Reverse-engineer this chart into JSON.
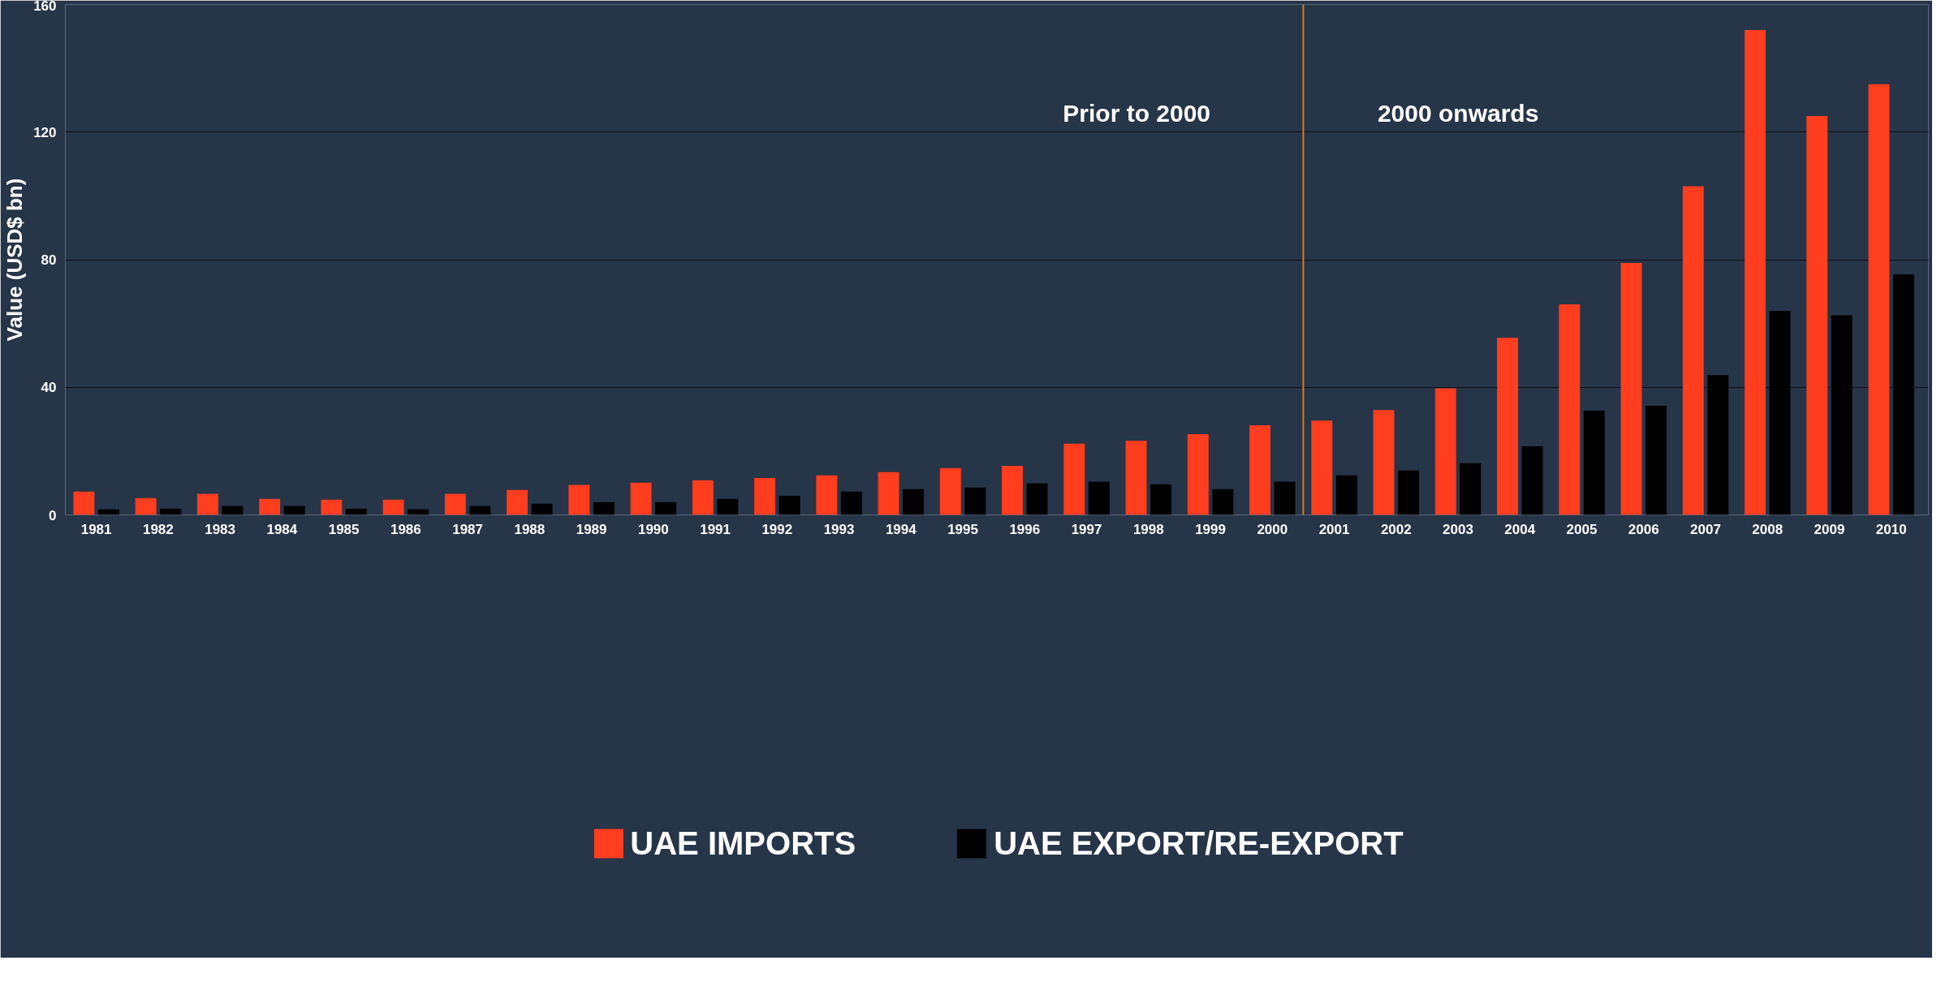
{
  "chart_data": {
    "type": "bar",
    "ylabel": "Value (USD$ bn)",
    "x": [
      1981,
      1982,
      1983,
      1984,
      1985,
      1986,
      1987,
      1988,
      1989,
      1990,
      1991,
      1992,
      1993,
      1994,
      1995,
      1996,
      1997,
      1998,
      1999,
      2000,
      2001,
      2002,
      2003,
      2004,
      2005,
      2006,
      2007,
      2008,
      2009,
      2010
    ],
    "xlim": [
      1980.5,
      2010.6
    ],
    "xticks": [
      1981,
      1982,
      1983,
      1984,
      1985,
      1986,
      1987,
      1988,
      1989,
      1990,
      1991,
      1992,
      1993,
      1994,
      1995,
      1996,
      1997,
      1998,
      1999,
      2000,
      2001,
      2002,
      2003,
      2004,
      2005,
      2006,
      2007,
      2008,
      2009,
      2010
    ],
    "ylim": [
      0,
      160
    ],
    "yticks": [
      0,
      40,
      80,
      120,
      160
    ],
    "grid": "y",
    "legend": "bottom",
    "series": [
      {
        "name": "UAE IMPORTS",
        "color": "#ff3d1f",
        "values": [
          7.3,
          5.3,
          6.6,
          5,
          4.8,
          4.8,
          6.6,
          7.8,
          9.4,
          10.1,
          10.9,
          11.6,
          12.4,
          13.4,
          14.7,
          15.4,
          22.3,
          23.3,
          25.3,
          28.1,
          29.6,
          32.9,
          39.7,
          55.5,
          66,
          79,
          103,
          152,
          125,
          135
        ]
      },
      {
        "name": "UAE EXPORT/RE-EXPORT",
        "color": "#000000",
        "values": [
          1.8,
          2,
          2.8,
          2.8,
          2,
          1.8,
          2.8,
          3.5,
          4,
          4,
          5,
          6,
          7.3,
          8.1,
          8.6,
          9.9,
          10.4,
          9.6,
          8.1,
          10.4,
          12.4,
          13.9,
          16.2,
          21.5,
          32.7,
          34.2,
          43.8,
          64,
          62.6,
          75.4
        ]
      }
    ],
    "ref_lines": [
      {
        "axis": "x",
        "value": 2000.5,
        "color": "#e07a1a"
      }
    ],
    "annotations": [
      "Prior to 2000",
      "2000 onwards"
    ]
  }
}
